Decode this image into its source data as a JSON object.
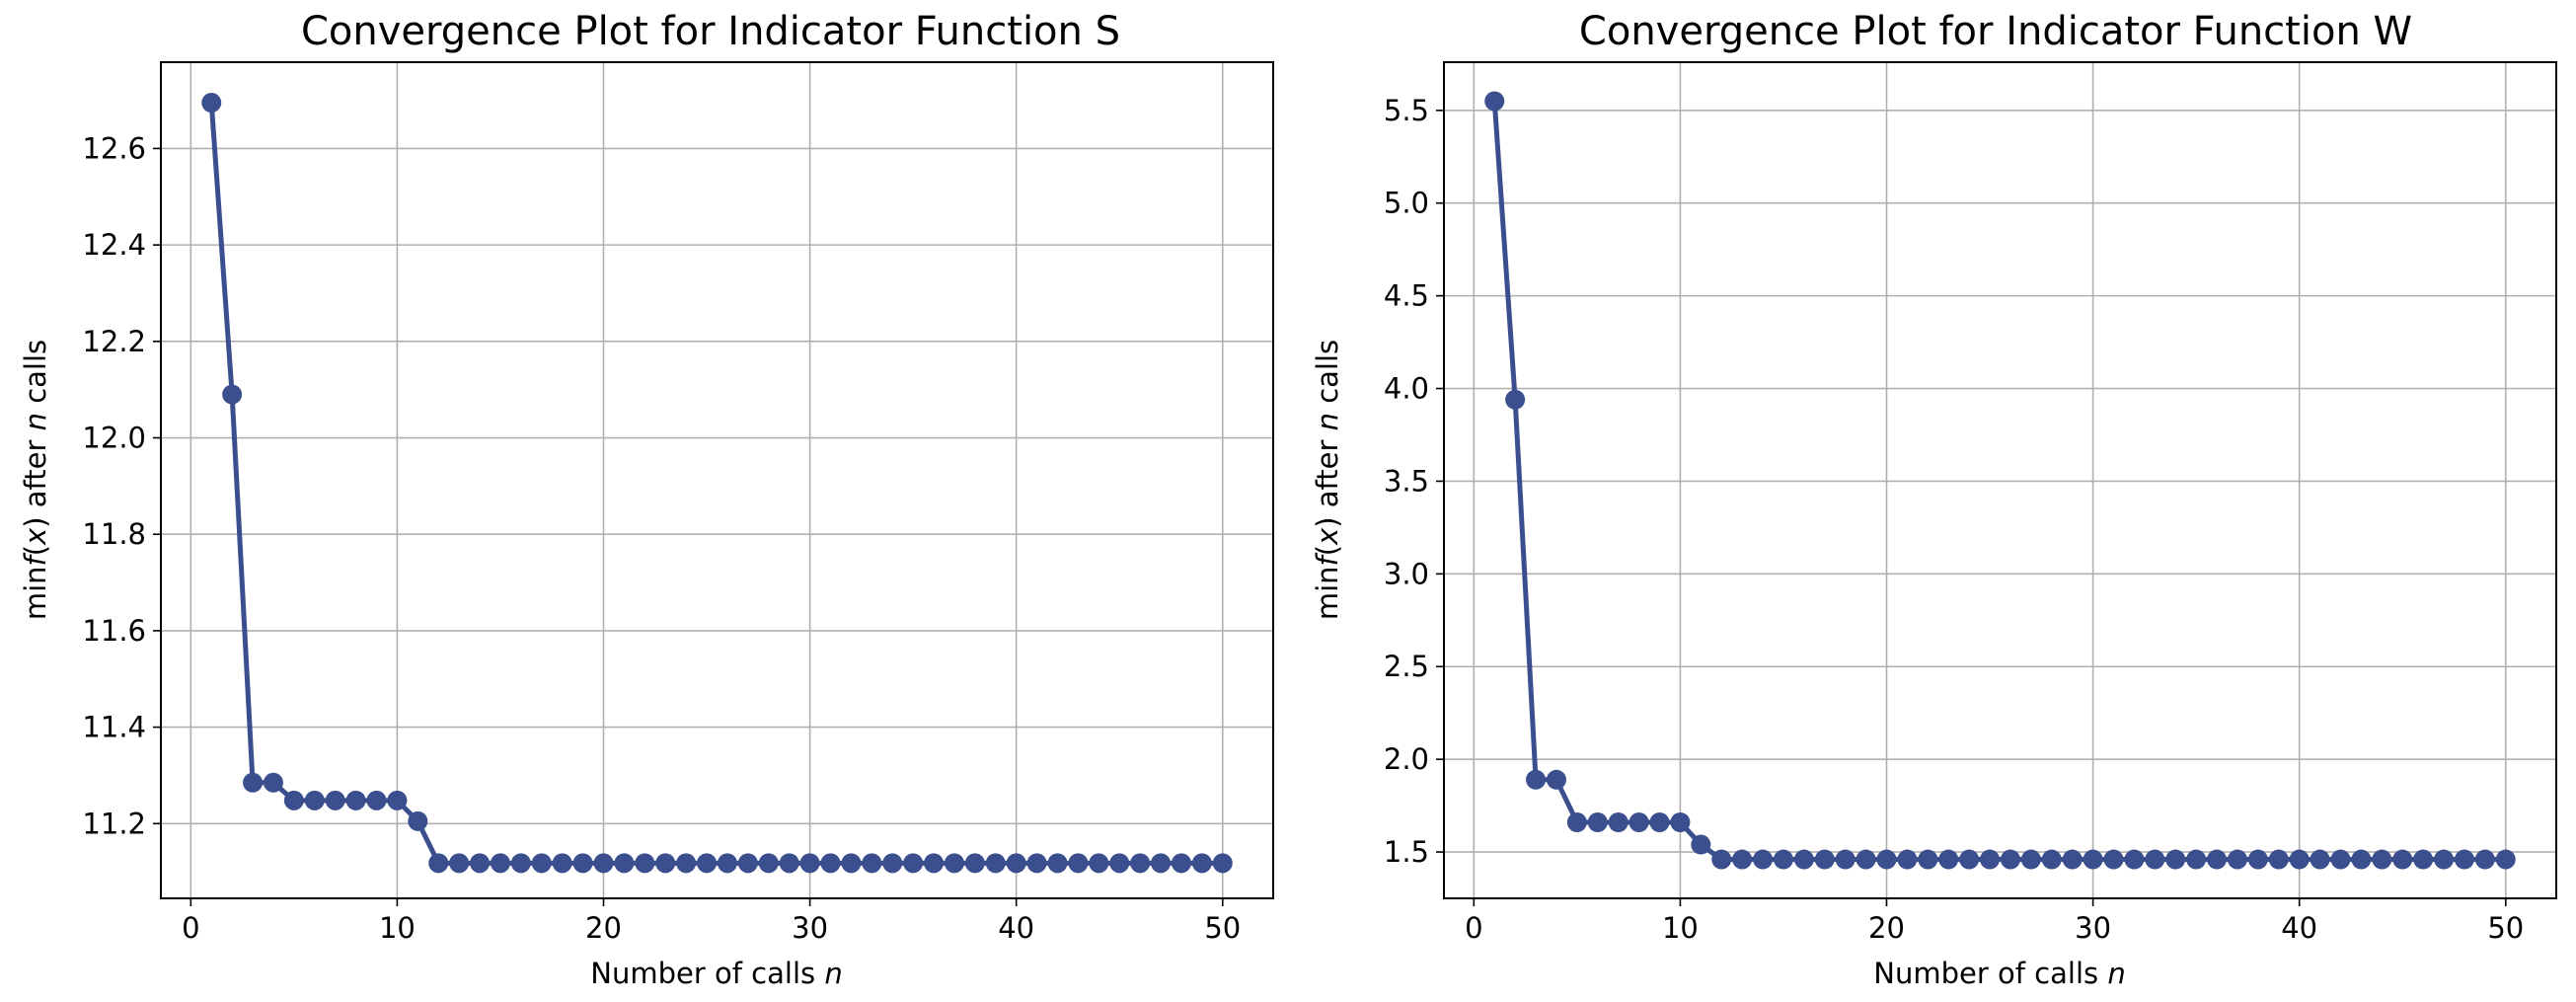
{
  "chart_data": [
    {
      "type": "line",
      "title": "Convergence Plot for Indicator Function S",
      "xlabel": "Number of calls",
      "xlabel_var": "n",
      "ylabel_pre": "min",
      "ylabel_func": "f",
      "ylabel_arg": "x",
      "ylabel_mid": "after",
      "ylabel_var": "n",
      "ylabel_post": "calls",
      "xlim": [
        -1.45,
        52.45
      ],
      "ylim": [
        11.045,
        12.779
      ],
      "grid": true,
      "xticks": [
        0,
        10,
        20,
        30,
        40,
        50
      ],
      "xtick_labels": [
        "0",
        "10",
        "20",
        "30",
        "40",
        "50"
      ],
      "yticks": [
        11.2,
        11.4,
        11.6,
        11.8,
        12.0,
        12.2,
        12.4,
        12.6
      ],
      "ytick_labels": [
        "11.2",
        "11.4",
        "11.6",
        "11.8",
        "12.0",
        "12.2",
        "12.4",
        "12.6"
      ],
      "color": "#3b4f8e",
      "series": [
        {
          "x": [
            1,
            2,
            3,
            4,
            5,
            6,
            7,
            8,
            9,
            10,
            11,
            12,
            13,
            14,
            15,
            16,
            17,
            18,
            19,
            20,
            21,
            22,
            23,
            24,
            25,
            26,
            27,
            28,
            29,
            30,
            31,
            32,
            33,
            34,
            35,
            36,
            37,
            38,
            39,
            40,
            41,
            42,
            43,
            44,
            45,
            46,
            47,
            48,
            49,
            50
          ],
          "values": [
            12.695,
            12.09,
            11.285,
            11.285,
            11.248,
            11.248,
            11.248,
            11.248,
            11.248,
            11.248,
            11.205,
            11.118,
            11.118,
            11.118,
            11.118,
            11.118,
            11.118,
            11.118,
            11.118,
            11.118,
            11.118,
            11.118,
            11.118,
            11.118,
            11.118,
            11.118,
            11.118,
            11.118,
            11.118,
            11.118,
            11.118,
            11.118,
            11.118,
            11.118,
            11.118,
            11.118,
            11.118,
            11.118,
            11.118,
            11.118,
            11.118,
            11.118,
            11.118,
            11.118,
            11.118,
            11.118,
            11.118,
            11.118,
            11.118,
            11.118
          ]
        }
      ]
    },
    {
      "type": "line",
      "title": "Convergence Plot for Indicator Function W",
      "xlabel": "Number of calls",
      "xlabel_var": "n",
      "ylabel_pre": "min",
      "ylabel_func": "f",
      "ylabel_arg": "x",
      "ylabel_mid": "after",
      "ylabel_var": "n",
      "ylabel_post": "calls",
      "xlim": [
        -1.45,
        52.45
      ],
      "ylim": [
        1.25,
        5.76
      ],
      "grid": true,
      "xticks": [
        0,
        10,
        20,
        30,
        40,
        50
      ],
      "xtick_labels": [
        "0",
        "10",
        "20",
        "30",
        "40",
        "50"
      ],
      "yticks": [
        1.5,
        2.0,
        2.5,
        3.0,
        3.5,
        4.0,
        4.5,
        5.0,
        5.5
      ],
      "ytick_labels": [
        "1.5",
        "2.0",
        "2.5",
        "3.0",
        "3.5",
        "4.0",
        "4.5",
        "5.0",
        "5.5"
      ],
      "color": "#3b4f8e",
      "series": [
        {
          "x": [
            1,
            2,
            3,
            4,
            5,
            6,
            7,
            8,
            9,
            10,
            11,
            12,
            13,
            14,
            15,
            16,
            17,
            18,
            19,
            20,
            21,
            22,
            23,
            24,
            25,
            26,
            27,
            28,
            29,
            30,
            31,
            32,
            33,
            34,
            35,
            36,
            37,
            38,
            39,
            40,
            41,
            42,
            43,
            44,
            45,
            46,
            47,
            48,
            49,
            50
          ],
          "values": [
            5.55,
            3.94,
            1.89,
            1.89,
            1.66,
            1.66,
            1.66,
            1.66,
            1.66,
            1.66,
            1.54,
            1.46,
            1.46,
            1.46,
            1.46,
            1.46,
            1.46,
            1.46,
            1.46,
            1.46,
            1.46,
            1.46,
            1.46,
            1.46,
            1.46,
            1.46,
            1.46,
            1.46,
            1.46,
            1.46,
            1.46,
            1.46,
            1.46,
            1.46,
            1.46,
            1.46,
            1.46,
            1.46,
            1.46,
            1.46,
            1.46,
            1.46,
            1.46,
            1.46,
            1.46,
            1.46,
            1.46,
            1.46,
            1.46,
            1.46
          ]
        }
      ]
    }
  ]
}
